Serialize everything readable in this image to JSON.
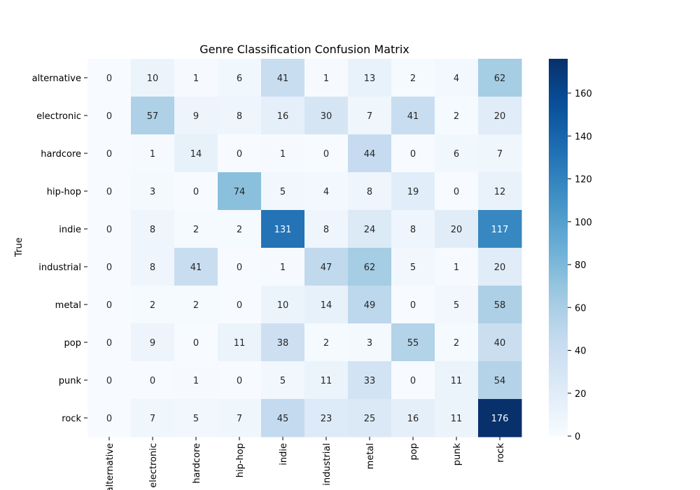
{
  "chart_data": {
    "type": "heatmap",
    "title": "Genre Classification Confusion Matrix",
    "ylabel": "True",
    "xlabel": "",
    "rows": [
      "alternative",
      "electronic",
      "hardcore",
      "hip-hop",
      "indie",
      "industrial",
      "metal",
      "pop",
      "punk",
      "rock"
    ],
    "columns": [
      "alternative",
      "electronic",
      "hardcore",
      "hip-hop",
      "indie",
      "industrial",
      "metal",
      "pop",
      "punk",
      "rock"
    ],
    "values": [
      [
        0,
        10,
        1,
        6,
        41,
        1,
        13,
        2,
        4,
        62
      ],
      [
        0,
        57,
        9,
        8,
        16,
        30,
        7,
        41,
        2,
        20
      ],
      [
        0,
        1,
        14,
        0,
        1,
        0,
        44,
        0,
        6,
        7
      ],
      [
        0,
        3,
        0,
        74,
        5,
        4,
        8,
        19,
        0,
        12
      ],
      [
        0,
        8,
        2,
        2,
        131,
        8,
        24,
        8,
        20,
        117
      ],
      [
        0,
        8,
        41,
        0,
        1,
        47,
        62,
        5,
        1,
        20
      ],
      [
        0,
        2,
        2,
        0,
        10,
        14,
        49,
        0,
        5,
        58
      ],
      [
        0,
        9,
        0,
        11,
        38,
        2,
        3,
        55,
        2,
        40
      ],
      [
        0,
        0,
        1,
        0,
        5,
        11,
        33,
        0,
        11,
        54
      ],
      [
        0,
        7,
        5,
        7,
        45,
        23,
        25,
        16,
        11,
        176
      ]
    ],
    "colorbar": {
      "range": [
        0,
        176
      ],
      "ticks": [
        0,
        20,
        40,
        60,
        80,
        100,
        120,
        140,
        160
      ]
    },
    "colormap": "Blues",
    "grid": false,
    "legend": "none"
  }
}
